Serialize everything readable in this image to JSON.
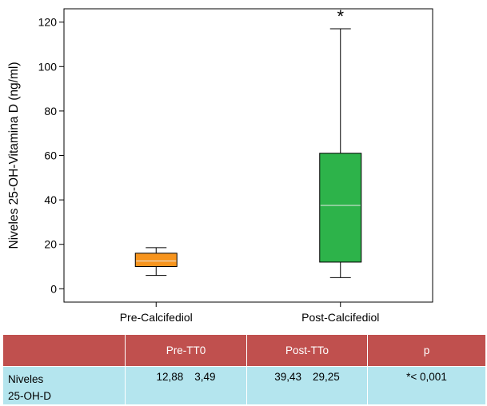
{
  "chart_data": {
    "type": "box",
    "ylabel": "Niveles 25-OH-Vitamina D (ng/ml)",
    "ylim": [
      -6,
      126
    ],
    "yticks": [
      0,
      20,
      40,
      60,
      80,
      100,
      120
    ],
    "grid": false,
    "categories": [
      "Pre-Calcifediol",
      "Post-Calcifediol"
    ],
    "boxes": [
      {
        "category": "Pre-Calcifediol",
        "min": 6,
        "q1": 10,
        "median": 12.5,
        "q3": 16,
        "max": 18.5,
        "color": "#f7941d"
      },
      {
        "category": "Post-Calcifediol",
        "min": 5,
        "q1": 12,
        "median": 37.5,
        "q3": 61,
        "max": 117,
        "color": "#2db34a"
      }
    ],
    "annotations": [
      {
        "text": "*",
        "category": "Post-Calcifediol",
        "y": 125
      }
    ]
  },
  "table": {
    "headers": [
      "",
      "Pre-TT0",
      "Post-TTo",
      "p"
    ],
    "rows": [
      {
        "label_line1": "Niveles",
        "label_line2": "25-OH-D",
        "pre_mean": "12,88",
        "pre_sd": "3,49",
        "post_mean": "39,43",
        "post_sd": "29,25",
        "p": "*< 0,001"
      }
    ]
  },
  "colors": {
    "header_bg": "#c0504e",
    "body_bg": "#b4e5ee"
  }
}
